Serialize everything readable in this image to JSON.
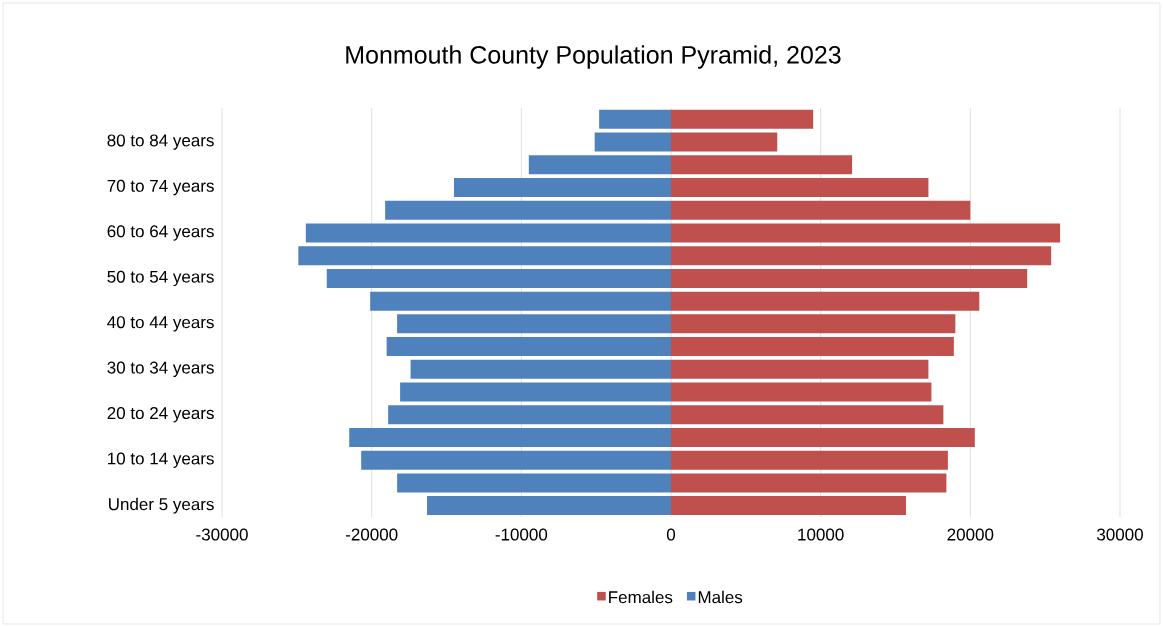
{
  "chart_data": {
    "type": "bar",
    "orientation": "horizontal",
    "title": "Monmouth County Population Pyramid, 2023",
    "categories": [
      null,
      "80 to 84 years",
      null,
      "70 to 74 years",
      null,
      "60 to 64 years",
      null,
      "50 to 54 years",
      null,
      "40 to 44 years",
      null,
      "30 to 34 years",
      null,
      "20 to 24 years",
      null,
      "10 to 14 years",
      null,
      "Under 5 years"
    ],
    "series": [
      {
        "name": "Females",
        "color": "#c0504d",
        "values": [
          9500,
          7100,
          12100,
          17200,
          20000,
          26000,
          25400,
          23800,
          20600,
          19000,
          18900,
          17200,
          17400,
          18200,
          20300,
          18500,
          18400,
          15700
        ]
      },
      {
        "name": "Males",
        "color": "#4f81bd",
        "values": [
          -4800,
          -5100,
          -9500,
          -14500,
          -19100,
          -24400,
          -24900,
          -23000,
          -20100,
          -18300,
          -19000,
          -17400,
          -18100,
          -18900,
          -21500,
          -20700,
          -18300,
          -16300
        ]
      }
    ],
    "xlim": [
      -30000,
      30000
    ],
    "xticks": [
      -30000,
      -20000,
      -10000,
      0,
      10000,
      20000,
      30000
    ],
    "stacked": true,
    "grid": "x",
    "legend": "bottom"
  }
}
